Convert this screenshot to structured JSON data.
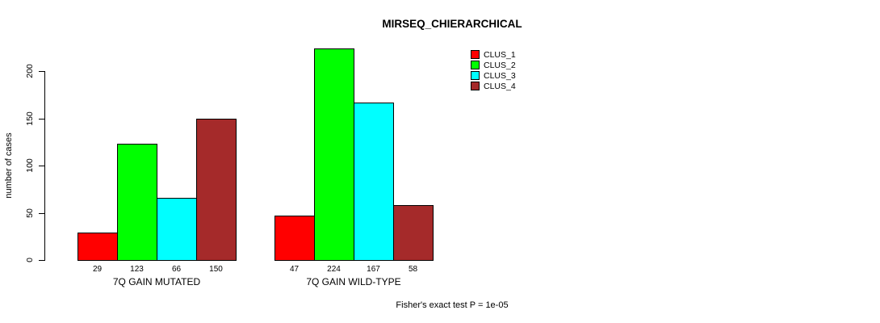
{
  "chart_data": {
    "type": "bar",
    "title": "MIRSEQ_CHIERARCHICAL",
    "xlabel": "",
    "ylabel": "number of cases",
    "ylim": [
      0,
      200
    ],
    "yticks": [
      0,
      50,
      100,
      150,
      200
    ],
    "grid": false,
    "legend_position": "top-right",
    "categories": [
      "7Q GAIN MUTATED",
      "7Q GAIN WILD-TYPE"
    ],
    "series": [
      {
        "name": "CLUS_1",
        "color": "#FF0000",
        "values": [
          29,
          47
        ]
      },
      {
        "name": "CLUS_2",
        "color": "#00FF00",
        "values": [
          123,
          224
        ]
      },
      {
        "name": "CLUS_3",
        "color": "#00FFFF",
        "values": [
          66,
          167
        ]
      },
      {
        "name": "CLUS_4",
        "color": "#A52A2A",
        "values": [
          150,
          58
        ]
      }
    ],
    "bar_value_labels": [
      [
        29,
        123,
        66,
        150
      ],
      [
        47,
        224,
        167,
        58
      ]
    ],
    "footnote": "Fisher's exact test P = 1e-05"
  }
}
